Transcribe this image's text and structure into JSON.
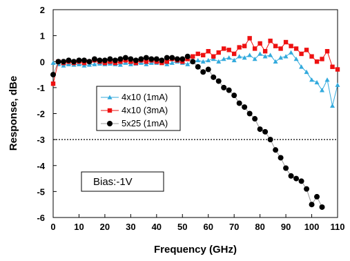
{
  "chart_data": {
    "type": "scatter",
    "xlabel": "Frequency (GHz)",
    "ylabel": "Response, dBe",
    "xlim": [
      0,
      110
    ],
    "ylim": [
      -6,
      2
    ],
    "xticks": [
      0,
      10,
      20,
      30,
      40,
      50,
      60,
      70,
      80,
      90,
      100,
      110
    ],
    "yticks": [
      2,
      1,
      0,
      -1,
      -2,
      -3,
      -4,
      -5,
      -6
    ],
    "grid": false,
    "legend_position": "center-left",
    "reference_line": {
      "y": -3,
      "style": "dotted"
    },
    "annotation": "Bias:-1V",
    "series": [
      {
        "name": "4x10 (1mA)",
        "color": "#33aadd",
        "marker": "triangle",
        "x": [
          0,
          2,
          4,
          6,
          8,
          10,
          12,
          14,
          16,
          18,
          20,
          22,
          24,
          26,
          28,
          30,
          32,
          34,
          36,
          38,
          40,
          42,
          44,
          46,
          48,
          50,
          52,
          54,
          56,
          58,
          60,
          62,
          64,
          66,
          68,
          70,
          72,
          74,
          76,
          78,
          80,
          82,
          84,
          86,
          88,
          90,
          92,
          94,
          96,
          98,
          100,
          102,
          104,
          106,
          108,
          110
        ],
        "y": [
          -0.05,
          -0.1,
          -0.15,
          -0.1,
          -0.12,
          -0.1,
          -0.15,
          -0.12,
          -0.1,
          -0.08,
          -0.1,
          -0.08,
          -0.1,
          -0.12,
          -0.05,
          -0.1,
          -0.08,
          -0.05,
          -0.1,
          -0.05,
          -0.05,
          -0.05,
          -0.1,
          -0.05,
          0.0,
          -0.05,
          -0.1,
          0.0,
          0.05,
          0.0,
          0.05,
          0.1,
          0.0,
          0.1,
          0.15,
          0.05,
          0.2,
          0.15,
          0.25,
          0.1,
          0.3,
          0.2,
          0.25,
          0.0,
          0.15,
          0.2,
          0.35,
          0.1,
          -0.2,
          -0.4,
          -0.7,
          -0.8,
          -1.1,
          -0.7,
          -1.7,
          -0.9
        ]
      },
      {
        "name": "4x10 (3mA)",
        "color": "#ee1111",
        "marker": "square",
        "x": [
          0,
          2,
          4,
          6,
          8,
          10,
          12,
          14,
          16,
          18,
          20,
          22,
          24,
          26,
          28,
          30,
          32,
          34,
          36,
          38,
          40,
          42,
          44,
          46,
          48,
          50,
          52,
          54,
          56,
          58,
          60,
          62,
          64,
          66,
          68,
          70,
          72,
          74,
          76,
          78,
          80,
          82,
          84,
          86,
          88,
          90,
          92,
          94,
          96,
          98,
          100,
          102,
          104,
          106,
          108,
          110
        ],
        "y": [
          -0.85,
          0.0,
          -0.05,
          0.0,
          -0.05,
          0.0,
          -0.05,
          0.0,
          0.05,
          0.0,
          -0.05,
          0.0,
          -0.05,
          0.0,
          0.05,
          0.0,
          -0.05,
          0.05,
          0.0,
          0.05,
          0.0,
          -0.05,
          0.0,
          0.1,
          0.05,
          0.0,
          0.1,
          0.2,
          0.3,
          0.25,
          0.4,
          0.2,
          0.35,
          0.5,
          0.45,
          0.3,
          0.55,
          0.6,
          0.9,
          0.5,
          0.7,
          0.4,
          0.8,
          0.6,
          0.5,
          0.75,
          0.6,
          0.5,
          0.3,
          0.45,
          0.2,
          0.0,
          0.1,
          0.4,
          -0.2,
          -0.3
        ]
      },
      {
        "name": "5x25 (1mA)",
        "color": "#000000",
        "marker": "circle",
        "x": [
          0,
          2,
          4,
          6,
          8,
          10,
          12,
          14,
          16,
          18,
          20,
          22,
          24,
          26,
          28,
          30,
          32,
          34,
          36,
          38,
          40,
          42,
          44,
          46,
          48,
          50,
          52,
          54,
          56,
          58,
          60,
          62,
          64,
          66,
          68,
          70,
          72,
          74,
          76,
          78,
          80,
          82,
          84,
          86,
          88,
          90,
          92,
          94,
          96,
          98,
          100,
          102,
          104
        ],
        "y": [
          -0.5,
          0.0,
          0.0,
          0.05,
          0.0,
          0.05,
          0.05,
          0.0,
          0.1,
          0.05,
          0.05,
          0.1,
          0.05,
          0.1,
          0.15,
          0.1,
          0.05,
          0.1,
          0.15,
          0.1,
          0.1,
          0.05,
          0.15,
          0.15,
          0.1,
          0.1,
          0.2,
          0.0,
          -0.2,
          -0.4,
          -0.3,
          -0.6,
          -0.75,
          -1.0,
          -1.1,
          -1.3,
          -1.6,
          -1.75,
          -2.0,
          -2.2,
          -2.6,
          -2.7,
          -3.0,
          -3.4,
          -3.7,
          -4.1,
          -4.4,
          -4.5,
          -4.6,
          -4.9,
          -5.5,
          -5.2,
          -5.6
        ]
      }
    ]
  }
}
